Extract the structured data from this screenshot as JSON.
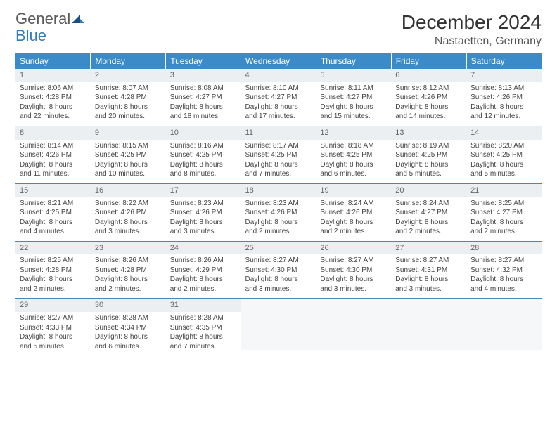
{
  "logo": {
    "general": "General",
    "blue": "Blue"
  },
  "title": "December 2024",
  "location": "Nastaetten, Germany",
  "colors": {
    "header_bg": "#3b8bc9",
    "header_text": "#ffffff",
    "daynum_bg": "#eceff1",
    "border": "#3b8bc9",
    "logo_general": "#5a5a5a",
    "logo_blue": "#2f7dc0",
    "body_text": "#444444"
  },
  "fonts": {
    "title_size": 28,
    "location_size": 16,
    "header_size": 12,
    "daynum_size": 11,
    "body_size": 10
  },
  "weekdays": [
    "Sunday",
    "Monday",
    "Tuesday",
    "Wednesday",
    "Thursday",
    "Friday",
    "Saturday"
  ],
  "weeks": [
    [
      {
        "n": "1",
        "sr": "Sunrise: 8:06 AM",
        "ss": "Sunset: 4:28 PM",
        "d1": "Daylight: 8 hours",
        "d2": "and 22 minutes."
      },
      {
        "n": "2",
        "sr": "Sunrise: 8:07 AM",
        "ss": "Sunset: 4:28 PM",
        "d1": "Daylight: 8 hours",
        "d2": "and 20 minutes."
      },
      {
        "n": "3",
        "sr": "Sunrise: 8:08 AM",
        "ss": "Sunset: 4:27 PM",
        "d1": "Daylight: 8 hours",
        "d2": "and 18 minutes."
      },
      {
        "n": "4",
        "sr": "Sunrise: 8:10 AM",
        "ss": "Sunset: 4:27 PM",
        "d1": "Daylight: 8 hours",
        "d2": "and 17 minutes."
      },
      {
        "n": "5",
        "sr": "Sunrise: 8:11 AM",
        "ss": "Sunset: 4:27 PM",
        "d1": "Daylight: 8 hours",
        "d2": "and 15 minutes."
      },
      {
        "n": "6",
        "sr": "Sunrise: 8:12 AM",
        "ss": "Sunset: 4:26 PM",
        "d1": "Daylight: 8 hours",
        "d2": "and 14 minutes."
      },
      {
        "n": "7",
        "sr": "Sunrise: 8:13 AM",
        "ss": "Sunset: 4:26 PM",
        "d1": "Daylight: 8 hours",
        "d2": "and 12 minutes."
      }
    ],
    [
      {
        "n": "8",
        "sr": "Sunrise: 8:14 AM",
        "ss": "Sunset: 4:26 PM",
        "d1": "Daylight: 8 hours",
        "d2": "and 11 minutes."
      },
      {
        "n": "9",
        "sr": "Sunrise: 8:15 AM",
        "ss": "Sunset: 4:25 PM",
        "d1": "Daylight: 8 hours",
        "d2": "and 10 minutes."
      },
      {
        "n": "10",
        "sr": "Sunrise: 8:16 AM",
        "ss": "Sunset: 4:25 PM",
        "d1": "Daylight: 8 hours",
        "d2": "and 8 minutes."
      },
      {
        "n": "11",
        "sr": "Sunrise: 8:17 AM",
        "ss": "Sunset: 4:25 PM",
        "d1": "Daylight: 8 hours",
        "d2": "and 7 minutes."
      },
      {
        "n": "12",
        "sr": "Sunrise: 8:18 AM",
        "ss": "Sunset: 4:25 PM",
        "d1": "Daylight: 8 hours",
        "d2": "and 6 minutes."
      },
      {
        "n": "13",
        "sr": "Sunrise: 8:19 AM",
        "ss": "Sunset: 4:25 PM",
        "d1": "Daylight: 8 hours",
        "d2": "and 5 minutes."
      },
      {
        "n": "14",
        "sr": "Sunrise: 8:20 AM",
        "ss": "Sunset: 4:25 PM",
        "d1": "Daylight: 8 hours",
        "d2": "and 5 minutes."
      }
    ],
    [
      {
        "n": "15",
        "sr": "Sunrise: 8:21 AM",
        "ss": "Sunset: 4:25 PM",
        "d1": "Daylight: 8 hours",
        "d2": "and 4 minutes."
      },
      {
        "n": "16",
        "sr": "Sunrise: 8:22 AM",
        "ss": "Sunset: 4:26 PM",
        "d1": "Daylight: 8 hours",
        "d2": "and 3 minutes."
      },
      {
        "n": "17",
        "sr": "Sunrise: 8:23 AM",
        "ss": "Sunset: 4:26 PM",
        "d1": "Daylight: 8 hours",
        "d2": "and 3 minutes."
      },
      {
        "n": "18",
        "sr": "Sunrise: 8:23 AM",
        "ss": "Sunset: 4:26 PM",
        "d1": "Daylight: 8 hours",
        "d2": "and 2 minutes."
      },
      {
        "n": "19",
        "sr": "Sunrise: 8:24 AM",
        "ss": "Sunset: 4:26 PM",
        "d1": "Daylight: 8 hours",
        "d2": "and 2 minutes."
      },
      {
        "n": "20",
        "sr": "Sunrise: 8:24 AM",
        "ss": "Sunset: 4:27 PM",
        "d1": "Daylight: 8 hours",
        "d2": "and 2 minutes."
      },
      {
        "n": "21",
        "sr": "Sunrise: 8:25 AM",
        "ss": "Sunset: 4:27 PM",
        "d1": "Daylight: 8 hours",
        "d2": "and 2 minutes."
      }
    ],
    [
      {
        "n": "22",
        "sr": "Sunrise: 8:25 AM",
        "ss": "Sunset: 4:28 PM",
        "d1": "Daylight: 8 hours",
        "d2": "and 2 minutes."
      },
      {
        "n": "23",
        "sr": "Sunrise: 8:26 AM",
        "ss": "Sunset: 4:28 PM",
        "d1": "Daylight: 8 hours",
        "d2": "and 2 minutes."
      },
      {
        "n": "24",
        "sr": "Sunrise: 8:26 AM",
        "ss": "Sunset: 4:29 PM",
        "d1": "Daylight: 8 hours",
        "d2": "and 2 minutes."
      },
      {
        "n": "25",
        "sr": "Sunrise: 8:27 AM",
        "ss": "Sunset: 4:30 PM",
        "d1": "Daylight: 8 hours",
        "d2": "and 3 minutes."
      },
      {
        "n": "26",
        "sr": "Sunrise: 8:27 AM",
        "ss": "Sunset: 4:30 PM",
        "d1": "Daylight: 8 hours",
        "d2": "and 3 minutes."
      },
      {
        "n": "27",
        "sr": "Sunrise: 8:27 AM",
        "ss": "Sunset: 4:31 PM",
        "d1": "Daylight: 8 hours",
        "d2": "and 3 minutes."
      },
      {
        "n": "28",
        "sr": "Sunrise: 8:27 AM",
        "ss": "Sunset: 4:32 PM",
        "d1": "Daylight: 8 hours",
        "d2": "and 4 minutes."
      }
    ],
    [
      {
        "n": "29",
        "sr": "Sunrise: 8:27 AM",
        "ss": "Sunset: 4:33 PM",
        "d1": "Daylight: 8 hours",
        "d2": "and 5 minutes."
      },
      {
        "n": "30",
        "sr": "Sunrise: 8:28 AM",
        "ss": "Sunset: 4:34 PM",
        "d1": "Daylight: 8 hours",
        "d2": "and 6 minutes."
      },
      {
        "n": "31",
        "sr": "Sunrise: 8:28 AM",
        "ss": "Sunset: 4:35 PM",
        "d1": "Daylight: 8 hours",
        "d2": "and 7 minutes."
      },
      null,
      null,
      null,
      null
    ]
  ]
}
